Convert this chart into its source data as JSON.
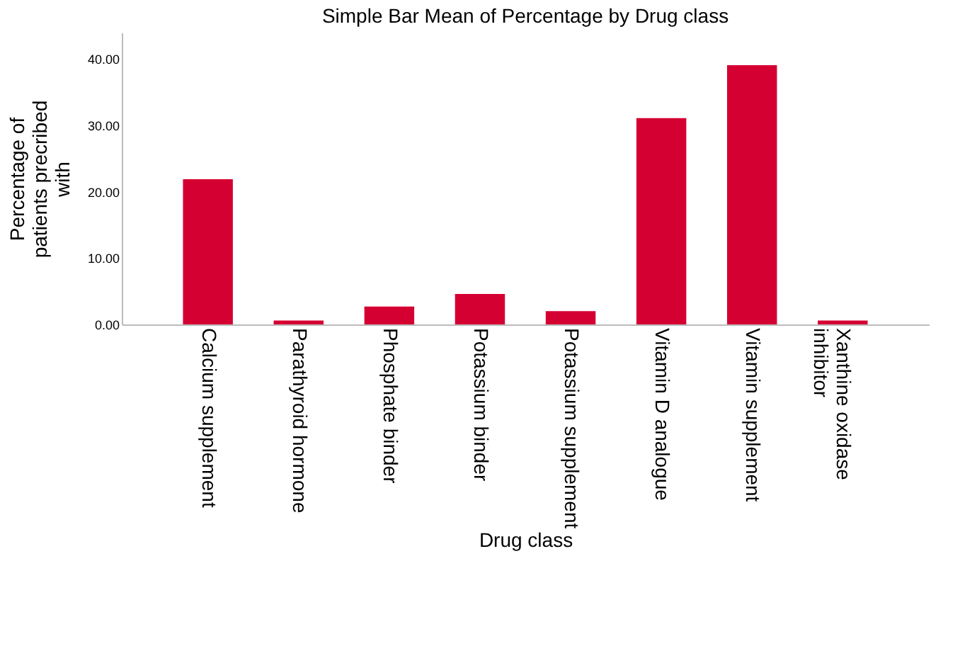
{
  "chart_data": {
    "type": "bar",
    "title": "Simple Bar Mean of Percentage by Drug class",
    "xlabel": "Drug class",
    "ylabel": "Percentage of patients precribed with",
    "categories": [
      "Calcium supplement",
      "Parathyroid hormone",
      "Phosphate binder",
      "Potassium binder",
      "Potassium supplement",
      "Vitamin D analogue",
      "Vitamin supplement",
      "Xanthine oxidase inhibitor"
    ],
    "values": [
      21.9,
      0.6,
      2.7,
      4.6,
      2.0,
      31.1,
      39.1,
      0.6
    ],
    "color": "#d50032",
    "ylim": [
      0,
      44
    ],
    "yticks": [
      {
        "value": 0,
        "label": "0.00"
      },
      {
        "value": 10,
        "label": "10.00"
      },
      {
        "value": 20,
        "label": "20.00"
      },
      {
        "value": 30,
        "label": "30.00"
      },
      {
        "value": 40,
        "label": "40.00"
      }
    ],
    "grid": false
  }
}
